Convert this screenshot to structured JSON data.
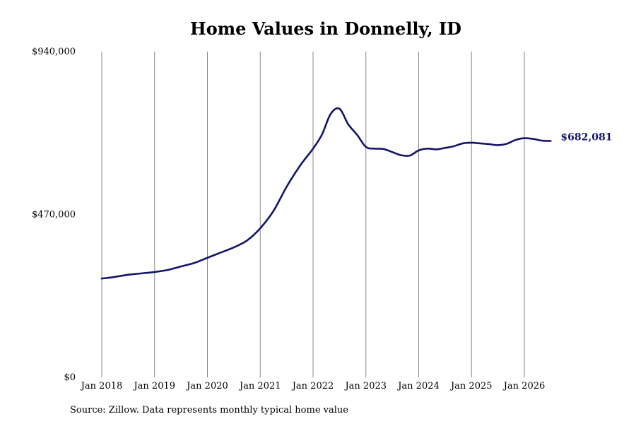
{
  "chart_data": {
    "type": "line",
    "title": "Home Values in Donnelly, ID",
    "xlabel": "",
    "ylabel": "",
    "x_ticks": [
      "Jan 2018",
      "Jan 2019",
      "Jan 2020",
      "Jan 2021",
      "Jan 2022",
      "Jan 2023",
      "Jan 2024",
      "Jan 2025",
      "Jan 2026"
    ],
    "y_ticks": [
      "$0",
      "$470,000",
      "$940,000"
    ],
    "ylim": [
      0,
      940000
    ],
    "xlim": [
      "2017-09",
      "2026-12"
    ],
    "grid": "vertical",
    "end_label": "$682,081",
    "series": [
      {
        "color": "#14146b",
        "x": [
          "2018-01",
          "2018-04",
          "2018-07",
          "2018-10",
          "2019-01",
          "2019-04",
          "2019-07",
          "2019-10",
          "2020-01",
          "2020-04",
          "2020-07",
          "2020-10",
          "2021-01",
          "2021-04",
          "2021-07",
          "2021-10",
          "2022-01",
          "2022-03",
          "2022-05",
          "2022-07",
          "2022-09",
          "2022-11",
          "2023-01",
          "2023-03",
          "2023-05",
          "2023-07",
          "2023-09",
          "2023-11",
          "2024-01",
          "2024-03",
          "2024-05",
          "2024-07",
          "2024-09",
          "2024-11",
          "2025-01",
          "2025-03",
          "2025-05",
          "2025-07",
          "2025-09",
          "2025-11",
          "2026-01",
          "2026-03",
          "2026-05",
          "2026-07"
        ],
        "values": [
          285000,
          290000,
          296000,
          300000,
          304000,
          310000,
          320000,
          330000,
          345000,
          360000,
          375000,
          395000,
          430000,
          480000,
          550000,
          610000,
          660000,
          700000,
          760000,
          775000,
          730000,
          700000,
          665000,
          660000,
          659000,
          650000,
          641000,
          640000,
          655000,
          660000,
          658000,
          662000,
          667000,
          675000,
          677000,
          675000,
          673000,
          670000,
          674000,
          685000,
          690000,
          688000,
          683000,
          682081
        ]
      }
    ]
  },
  "source_note": "Source: Zillow. Data represents monthly typical home value"
}
